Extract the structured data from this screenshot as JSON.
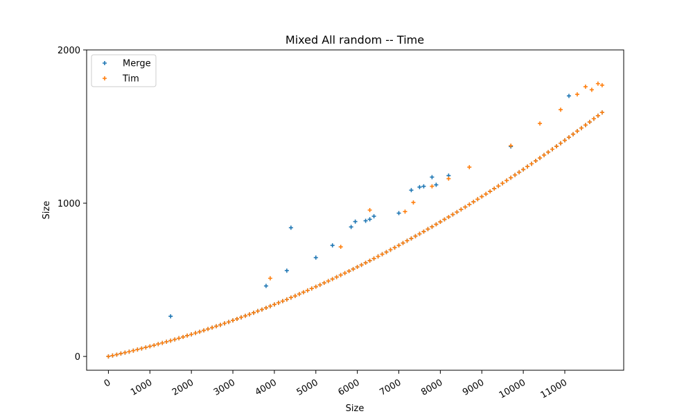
{
  "chart_data": {
    "type": "scatter",
    "title": "Mixed All random -- Time",
    "xlabel": "Size",
    "ylabel": "Size",
    "xlim": [
      -525,
      12420
    ],
    "ylim": [
      -90,
      2000
    ],
    "xticks": [
      0,
      1000,
      2000,
      3000,
      4000,
      5000,
      6000,
      7000,
      8000,
      9000,
      10000,
      11000
    ],
    "yticks": [
      0,
      1000,
      2000
    ],
    "grid": false,
    "legend_position": "top-left",
    "marker": "plus",
    "trend": {
      "note": "both series follow approximately y = 0.0598*x + 6.06e-6*x^2 from x=0 to x=11900"
    },
    "series": [
      {
        "name": "Merge",
        "color": "#1f77b4",
        "x": [
          0,
          100,
          200,
          300,
          400,
          500,
          600,
          700,
          800,
          900,
          1000,
          1100,
          1200,
          1300,
          1400,
          1500,
          1600,
          1700,
          1800,
          1900,
          2000,
          2100,
          2200,
          2300,
          2400,
          2500,
          2600,
          2700,
          2800,
          2900,
          3000,
          3100,
          3200,
          3300,
          3400,
          3500,
          3600,
          3700,
          3800,
          3900,
          4000,
          4100,
          4200,
          4300,
          4400,
          4500,
          4600,
          4700,
          4800,
          4900,
          5000,
          5100,
          5200,
          5300,
          5400,
          5500,
          5600,
          5700,
          5800,
          5900,
          6000,
          6100,
          6200,
          6300,
          6400,
          6500,
          6600,
          6700,
          6800,
          6900,
          7000,
          7100,
          7200,
          7300,
          7400,
          7500,
          7600,
          7700,
          7800,
          7900,
          8000,
          8100,
          8200,
          8300,
          8400,
          8500,
          8600,
          8700,
          8800,
          8900,
          9000,
          9100,
          9200,
          9300,
          9400,
          9500,
          9600,
          9700,
          9800,
          9900,
          10000,
          10100,
          10200,
          10300,
          10400,
          10500,
          10600,
          10700,
          10800,
          10900,
          11000,
          11100,
          11200,
          11300,
          11400,
          11500,
          11600,
          11700,
          11800,
          11900,
          1500,
          3800,
          4300,
          4400,
          5000,
          5400,
          5850,
          5950,
          6200,
          6300,
          6400,
          7000,
          7300,
          7500,
          7600,
          7800,
          7900,
          8200,
          9700,
          11100
        ],
        "y": [
          0,
          6,
          12,
          19,
          25,
          31,
          38,
          45,
          52,
          59,
          66,
          73,
          81,
          88,
          96,
          103,
          111,
          119,
          127,
          136,
          144,
          153,
          161,
          170,
          179,
          188,
          197,
          206,
          216,
          225,
          235,
          245,
          255,
          265,
          275,
          285,
          296,
          306,
          317,
          328,
          339,
          350,
          361,
          372,
          384,
          395,
          407,
          419,
          431,
          443,
          455,
          467,
          480,
          492,
          505,
          518,
          531,
          544,
          557,
          570,
          584,
          597,
          611,
          625,
          639,
          653,
          667,
          681,
          696,
          710,
          725,
          740,
          755,
          770,
          785,
          800,
          815,
          831,
          846,
          862,
          878,
          894,
          910,
          926,
          942,
          959,
          975,
          992,
          1009,
          1026,
          1043,
          1060,
          1077,
          1095,
          1112,
          1130,
          1148,
          1166,
          1184,
          1202,
          1220,
          1239,
          1257,
          1276,
          1295,
          1314,
          1333,
          1352,
          1371,
          1391,
          1410,
          1430,
          1450,
          1470,
          1490,
          1510,
          1530,
          1551,
          1571,
          1592,
          262,
          460,
          560,
          840,
          645,
          725,
          845,
          880,
          885,
          895,
          915,
          935,
          1085,
          1105,
          1110,
          1170,
          1120,
          1180,
          1370,
          1700
        ]
      },
      {
        "name": "Tim",
        "color": "#ff7f0e",
        "x": [
          0,
          100,
          200,
          300,
          400,
          500,
          600,
          700,
          800,
          900,
          1000,
          1100,
          1200,
          1300,
          1400,
          1500,
          1600,
          1700,
          1800,
          1900,
          2000,
          2100,
          2200,
          2300,
          2400,
          2500,
          2600,
          2700,
          2800,
          2900,
          3000,
          3100,
          3200,
          3300,
          3400,
          3500,
          3600,
          3700,
          3800,
          3900,
          4000,
          4100,
          4200,
          4300,
          4400,
          4500,
          4600,
          4700,
          4800,
          4900,
          5000,
          5100,
          5200,
          5300,
          5400,
          5500,
          5600,
          5700,
          5800,
          5900,
          6000,
          6100,
          6200,
          6300,
          6400,
          6500,
          6600,
          6700,
          6800,
          6900,
          7000,
          7100,
          7200,
          7300,
          7400,
          7500,
          7600,
          7700,
          7800,
          7900,
          8000,
          8100,
          8200,
          8300,
          8400,
          8500,
          8600,
          8700,
          8800,
          8900,
          9000,
          9100,
          9200,
          9300,
          9400,
          9500,
          9600,
          9700,
          9800,
          9900,
          10000,
          10100,
          10200,
          10300,
          10400,
          10500,
          10600,
          10700,
          10800,
          10900,
          11000,
          11100,
          11200,
          11300,
          11400,
          11500,
          11600,
          11700,
          11800,
          11900,
          3900,
          5600,
          6300,
          7150,
          7350,
          7800,
          8200,
          8700,
          9700,
          10400,
          10900,
          11300,
          11500,
          11650,
          11800,
          11900
        ],
        "y": [
          0,
          6,
          12,
          19,
          25,
          31,
          38,
          45,
          52,
          59,
          66,
          73,
          81,
          88,
          96,
          103,
          111,
          119,
          127,
          136,
          144,
          153,
          161,
          170,
          179,
          188,
          197,
          206,
          216,
          225,
          235,
          245,
          255,
          265,
          275,
          285,
          296,
          306,
          317,
          328,
          339,
          350,
          361,
          372,
          384,
          395,
          407,
          419,
          431,
          443,
          455,
          467,
          480,
          492,
          505,
          518,
          531,
          544,
          557,
          570,
          584,
          597,
          611,
          625,
          639,
          653,
          667,
          681,
          696,
          710,
          725,
          740,
          755,
          770,
          785,
          800,
          815,
          831,
          846,
          862,
          878,
          894,
          910,
          926,
          942,
          959,
          975,
          992,
          1009,
          1026,
          1043,
          1060,
          1077,
          1095,
          1112,
          1130,
          1148,
          1166,
          1184,
          1202,
          1220,
          1239,
          1257,
          1276,
          1295,
          1314,
          1333,
          1352,
          1371,
          1391,
          1410,
          1430,
          1450,
          1470,
          1490,
          1510,
          1530,
          1551,
          1571,
          1592,
          510,
          715,
          955,
          945,
          1005,
          1110,
          1160,
          1235,
          1375,
          1520,
          1610,
          1710,
          1760,
          1740,
          1780,
          1770
        ]
      }
    ]
  }
}
